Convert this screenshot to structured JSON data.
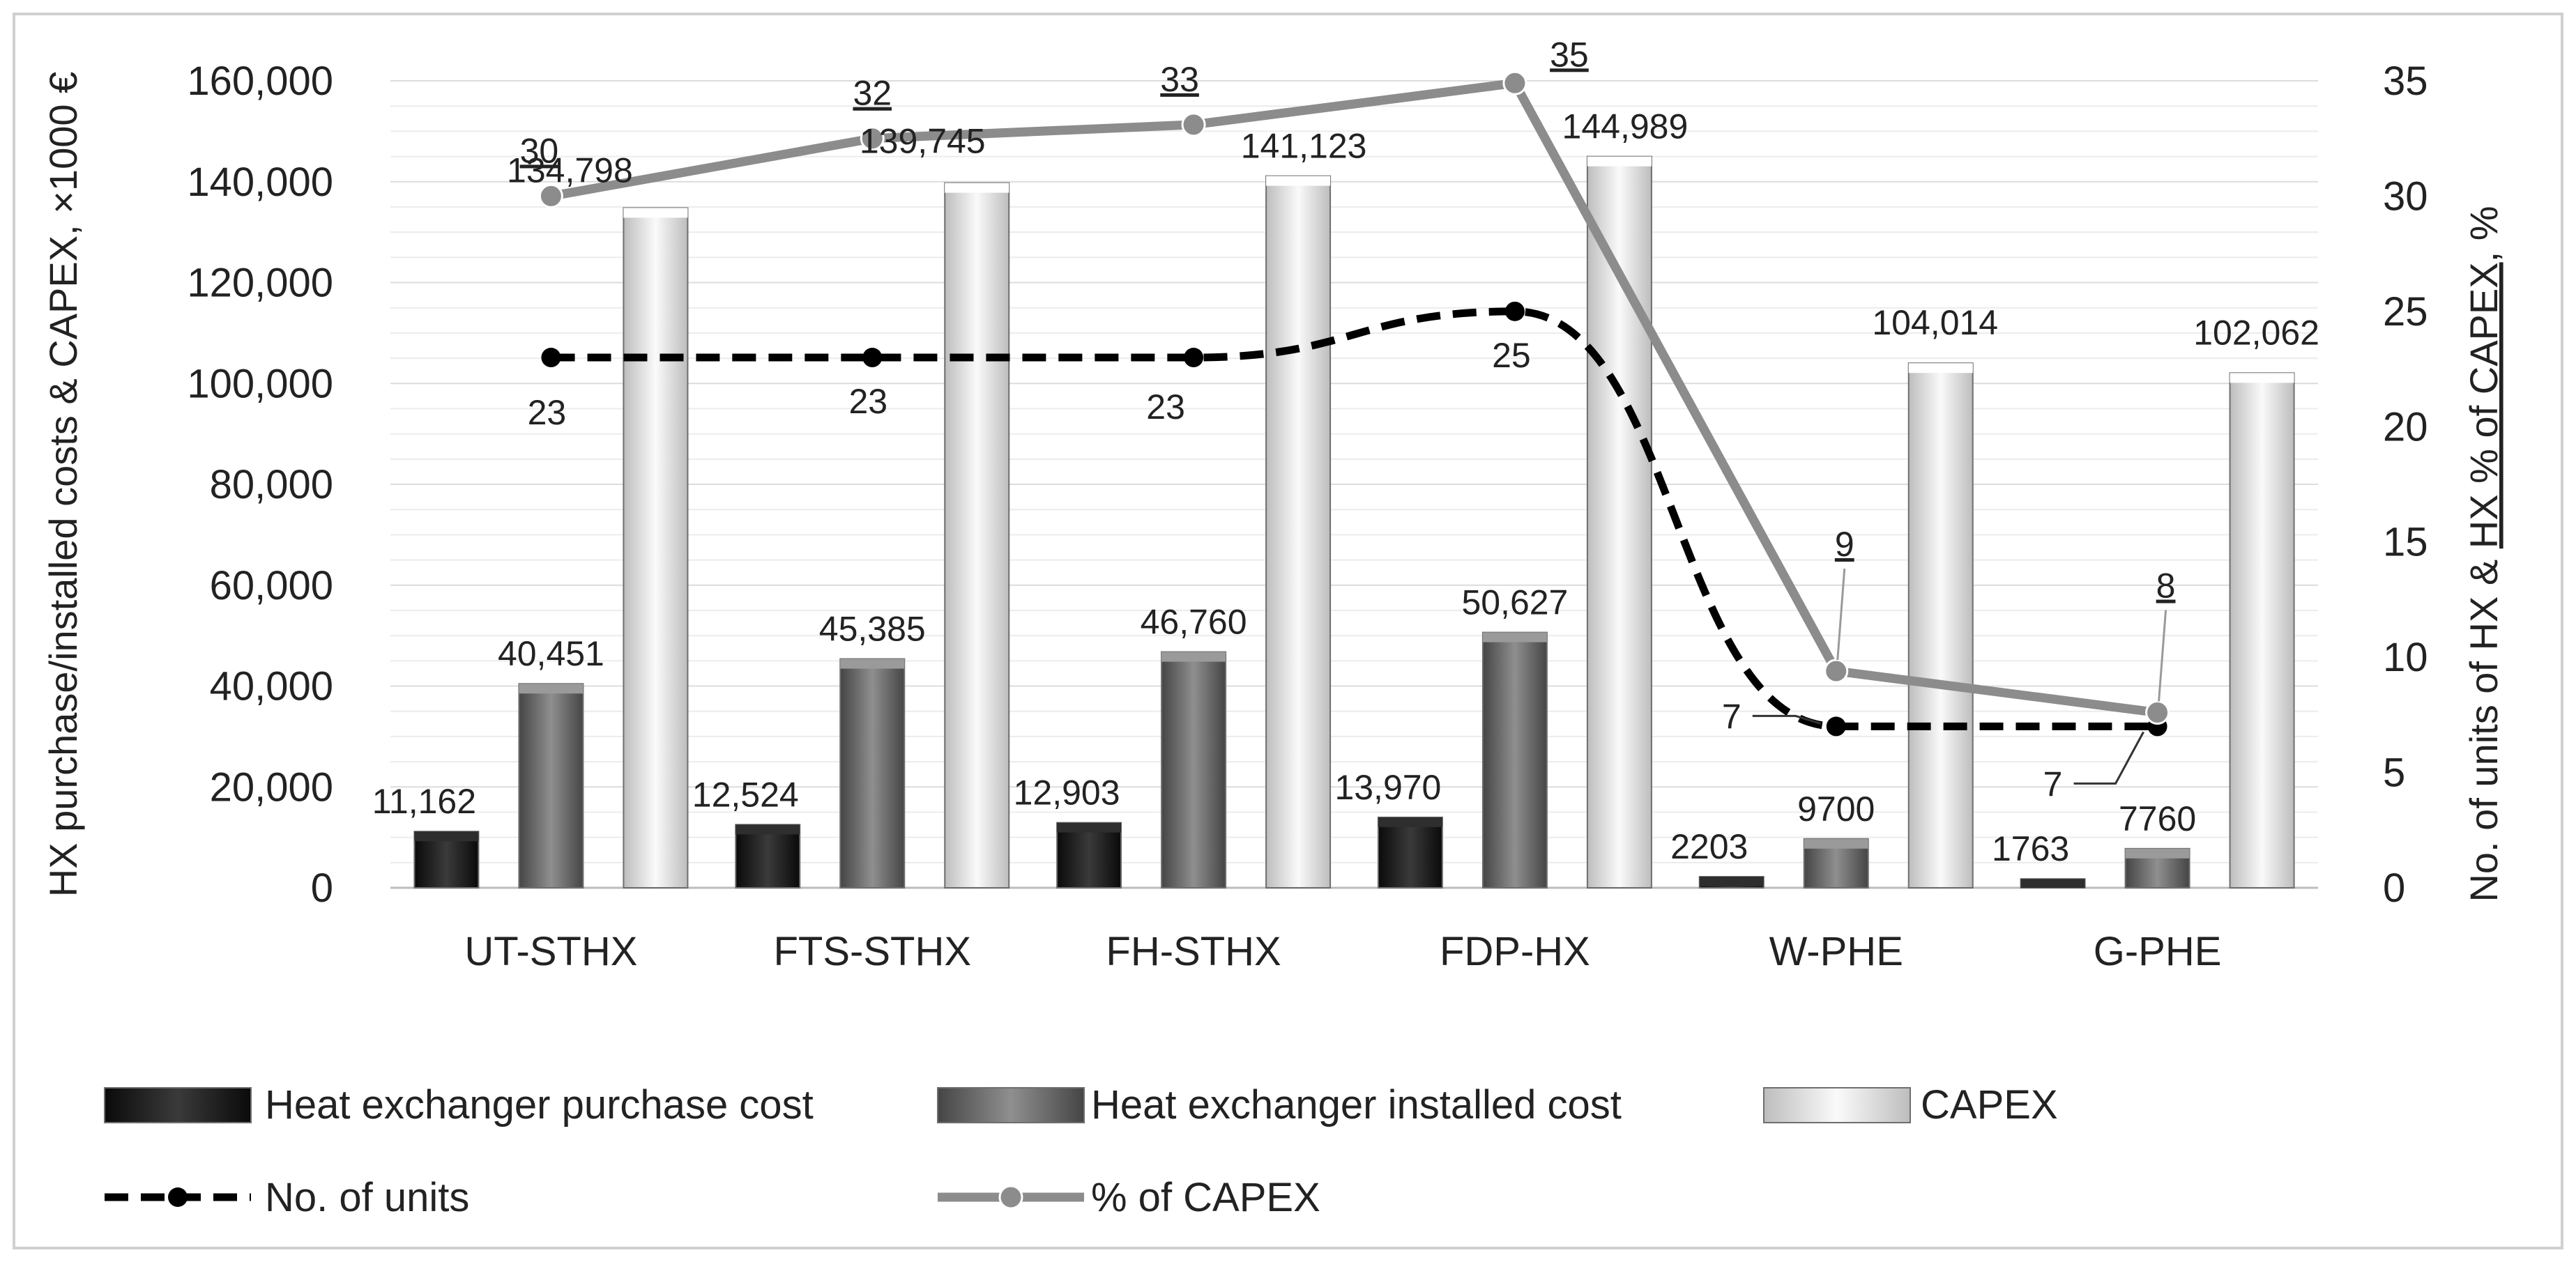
{
  "chart_data": {
    "type": "bar",
    "categories": [
      "UT-STHX",
      "FTS-STHX",
      "FH-STHX",
      "FDP-HX",
      "W-PHE",
      "G-PHE"
    ],
    "series": [
      {
        "name": "Heat exchanger purchase cost",
        "kind": "bar",
        "axis": "left",
        "values": [
          11162,
          12524,
          12903,
          13970,
          2203,
          1763
        ],
        "labels": [
          "11,162",
          "12,524",
          "12,903",
          "13,970",
          "2203",
          "1763"
        ],
        "color": "#1a1a1a"
      },
      {
        "name": "Heat exchanger installed cost",
        "kind": "bar",
        "axis": "left",
        "values": [
          40451,
          45385,
          46760,
          50627,
          9700,
          7760
        ],
        "labels": [
          "40,451",
          "45,385",
          "46,760",
          "50,627",
          "9700",
          "7760"
        ],
        "color": "#6f6f6f"
      },
      {
        "name": "CAPEX",
        "kind": "bar",
        "axis": "left",
        "values": [
          134798,
          139745,
          141123,
          144989,
          104014,
          102062
        ],
        "labels": [
          "134,798",
          "139,745",
          "141,123",
          "144,989",
          "104,014",
          "102,062"
        ],
        "color": "#e2e2e2"
      },
      {
        "name": "No. of units",
        "kind": "line",
        "style": "dashed",
        "axis": "right",
        "values": [
          23,
          23,
          23,
          25,
          7,
          7
        ],
        "labels": [
          "23",
          "23",
          "23",
          "25",
          "7",
          "7"
        ],
        "color": "#000000"
      },
      {
        "name": "% of CAPEX",
        "kind": "line",
        "style": "solid",
        "axis": "right",
        "values": [
          30,
          32.5,
          33.1,
          34.9,
          9.4,
          7.6
        ],
        "labels": [
          "30",
          "32",
          "33",
          "35",
          "9",
          "8"
        ],
        "color": "#8c8c8c"
      }
    ],
    "y_left": {
      "label": "HX purchase/installed costs & CAPEX, ×1000 €",
      "min": 0,
      "max": 160000,
      "ticks": [
        "0",
        "20,000",
        "40,000",
        "60,000",
        "80,000",
        "100,000",
        "120,000",
        "140,000",
        "160,000"
      ]
    },
    "y_right": {
      "label_parts": [
        {
          "text": "No. of units of HX & ",
          "underline": false
        },
        {
          "text": "HX % of CAPEX",
          "underline": true
        },
        {
          "text": ", %",
          "underline": false
        }
      ],
      "min": 0,
      "max": 35,
      "ticks": [
        "0",
        "5",
        "10",
        "15",
        "20",
        "25",
        "30",
        "35"
      ]
    },
    "grid": true,
    "legend_position": "bottom"
  }
}
